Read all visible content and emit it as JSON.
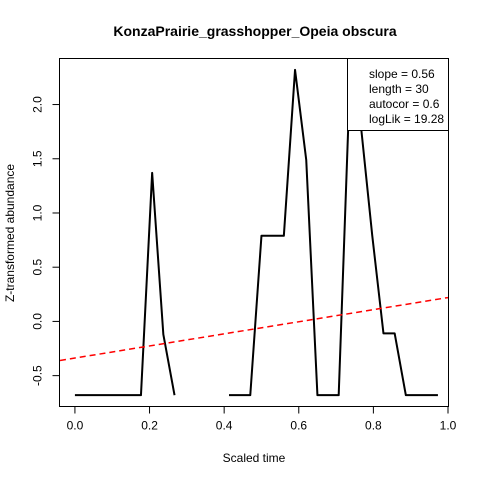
{
  "chart_data": {
    "type": "line",
    "title": "KonzaPrairie_grasshopper_Opeia obscura",
    "xlabel": "Scaled time",
    "ylabel": "Z-transformed abundance",
    "xlim": [
      -0.04,
      1.0
    ],
    "ylim": [
      -0.78,
      2.42
    ],
    "xticks": [
      0.0,
      0.2,
      0.4,
      0.6,
      0.8,
      1.0
    ],
    "xtick_labels": [
      "0.0",
      "0.2",
      "0.4",
      "0.6",
      "0.8",
      "1.0"
    ],
    "yticks": [
      -0.5,
      0.0,
      0.5,
      1.0,
      1.5,
      2.0
    ],
    "ytick_labels": [
      "-0.5",
      "0.0",
      "0.5",
      "1.0",
      "1.5",
      "2.0"
    ],
    "grid": false,
    "series": [
      {
        "color": "#000000",
        "style": "solid",
        "segments": [
          [
            [
              0.0,
              -0.68
            ],
            [
              0.03,
              -0.68
            ],
            [
              0.06,
              -0.68
            ],
            [
              0.09,
              -0.68
            ],
            [
              0.12,
              -0.68
            ],
            [
              0.15,
              -0.68
            ],
            [
              0.177,
              -0.68
            ],
            [
              0.207,
              1.37
            ],
            [
              0.237,
              -0.12
            ],
            [
              0.267,
              -0.68
            ]
          ],
          [
            [
              0.413,
              -0.68
            ],
            [
              0.443,
              -0.68
            ],
            [
              0.47,
              -0.68
            ],
            [
              0.5,
              0.79
            ],
            [
              0.53,
              0.79
            ],
            [
              0.56,
              0.79
            ],
            [
              0.59,
              2.32
            ],
            [
              0.62,
              1.49
            ],
            [
              0.65,
              -0.68
            ],
            [
              0.68,
              -0.68
            ],
            [
              0.707,
              -0.68
            ],
            [
              0.737,
              2.22
            ],
            [
              0.767,
              1.79
            ],
            [
              0.797,
              0.79
            ],
            [
              0.827,
              -0.11
            ],
            [
              0.857,
              -0.11
            ],
            [
              0.887,
              -0.68
            ],
            [
              0.917,
              -0.68
            ],
            [
              0.947,
              -0.68
            ],
            [
              0.973,
              -0.68
            ]
          ]
        ]
      },
      {
        "color": "#ff0000",
        "style": "dashed",
        "segments": [
          [
            [
              -0.04,
              -0.36
            ],
            [
              1.0,
              0.22
            ]
          ]
        ]
      }
    ],
    "legend": {
      "position": "top-right",
      "lines": [
        "slope = 0.56",
        "length = 30",
        "autocor = 0.6",
        "logLik = 19.28"
      ]
    }
  }
}
